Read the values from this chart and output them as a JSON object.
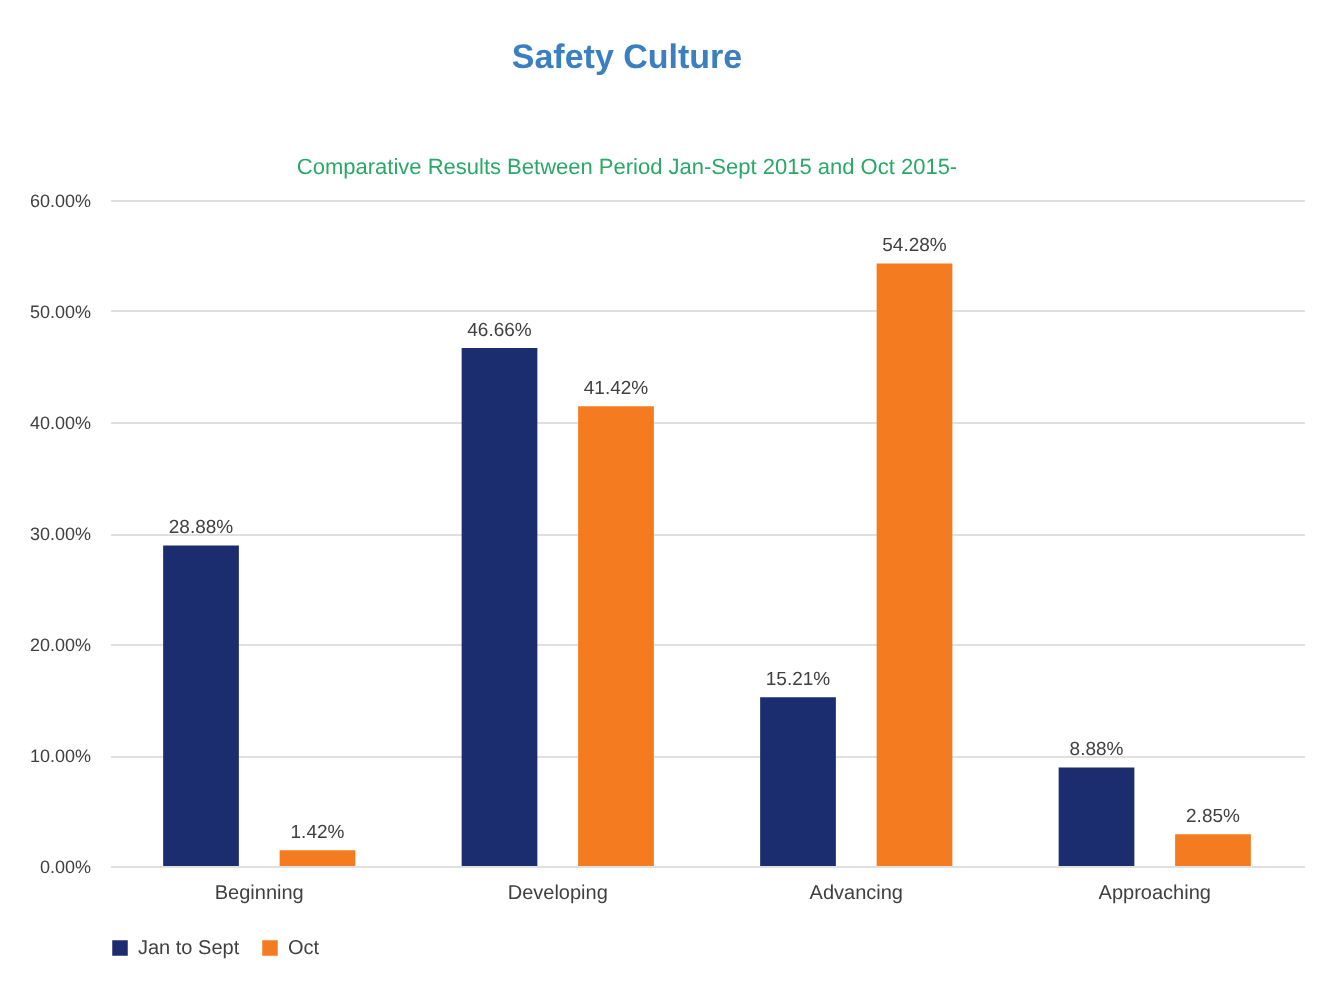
{
  "chart_data": {
    "type": "bar",
    "title": "Safety Culture",
    "subtitle": "Comparative Results  Between Period Jan-Sept 2015 and Oct 2015-",
    "categories": [
      "Beginning",
      "Developing",
      "Advancing",
      "Approaching"
    ],
    "series": [
      {
        "name": "Jan to Sept",
        "color": "#1b2c6f",
        "values": [
          28.88,
          46.66,
          15.21,
          8.88
        ],
        "value_labels": [
          "28.88%",
          "46.66%",
          "15.21%",
          "8.88%"
        ]
      },
      {
        "name": "Oct",
        "color": "#f47b20",
        "values": [
          1.42,
          41.42,
          54.28,
          2.85
        ],
        "value_labels": [
          "1.42%",
          "41.42%",
          "54.28%",
          "2.85%"
        ]
      }
    ],
    "ylim": [
      0,
      60
    ],
    "yticks": [
      {
        "value": 0,
        "label": "0.00%"
      },
      {
        "value": 10,
        "label": "10.00%"
      },
      {
        "value": 20,
        "label": "20.00%"
      },
      {
        "value": 30,
        "label": "30.00%"
      },
      {
        "value": 40,
        "label": "40.00%"
      },
      {
        "value": 50,
        "label": "50.00%"
      },
      {
        "value": 60,
        "label": "60.00%"
      }
    ],
    "grid": "y",
    "legend": "bottom"
  }
}
